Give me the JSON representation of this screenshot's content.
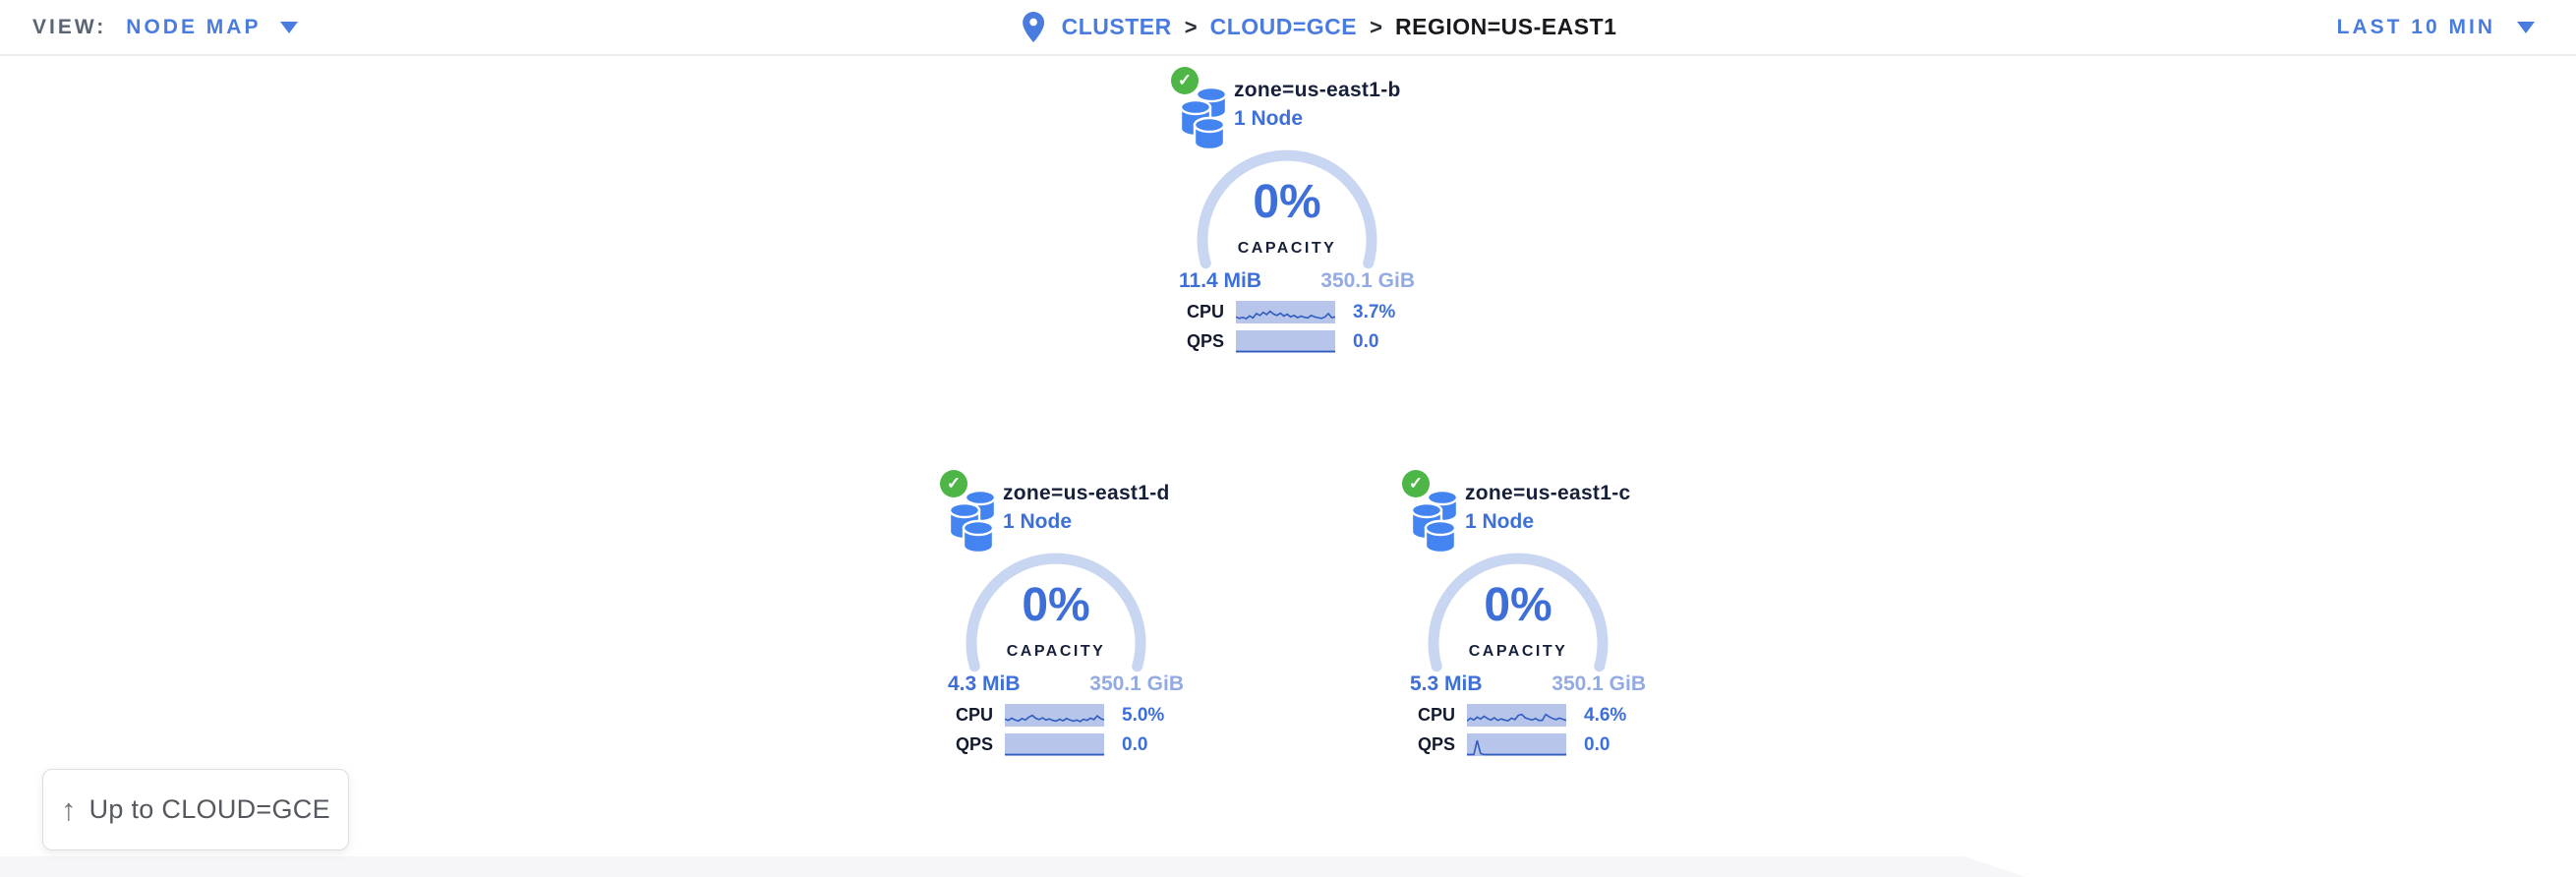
{
  "header": {
    "view_label": "VIEW:",
    "view_value": "NODE MAP",
    "time_range": "LAST 10 MIN",
    "breadcrumb": {
      "separator": ">",
      "items": [
        {
          "label": "CLUSTER"
        },
        {
          "label": "CLOUD=GCE"
        },
        {
          "label": "REGION=US-EAST1"
        }
      ]
    }
  },
  "zones": [
    {
      "name": "zone=us-east1-b",
      "node_count": "1 Node",
      "capacity_percent": "0%",
      "capacity_label": "CAPACITY",
      "used": "11.4 MiB",
      "total": "350.1 GiB",
      "cpu": {
        "label": "CPU",
        "value": "3.7%",
        "spark": [
          30,
          22,
          28,
          20,
          35,
          25,
          48,
          38,
          55,
          42,
          60,
          45,
          38,
          50,
          34,
          44,
          30,
          38,
          26,
          34,
          28,
          24,
          38,
          30,
          26,
          22,
          30,
          48,
          26,
          30
        ]
      },
      "qps": {
        "label": "QPS",
        "value": "0.0",
        "spark": [
          3,
          3,
          3,
          3,
          3,
          3,
          3,
          3,
          3,
          3,
          3,
          3,
          3,
          3,
          3,
          3,
          3,
          3,
          3,
          3,
          3,
          3,
          3,
          3,
          3,
          3,
          3,
          3,
          3,
          3
        ]
      }
    },
    {
      "name": "zone=us-east1-d",
      "node_count": "1 Node",
      "capacity_percent": "0%",
      "capacity_label": "CAPACITY",
      "used": "4.3 MiB",
      "total": "350.1 GiB",
      "cpu": {
        "label": "CPU",
        "value": "5.0%",
        "spark": [
          35,
          28,
          40,
          30,
          25,
          38,
          30,
          45,
          55,
          40,
          32,
          42,
          30,
          36,
          28,
          24,
          34,
          26,
          38,
          30,
          24,
          30,
          22,
          34,
          28,
          40,
          32,
          52,
          38,
          30
        ]
      },
      "qps": {
        "label": "QPS",
        "value": "0.0",
        "spark": [
          3,
          3,
          3,
          3,
          3,
          3,
          3,
          3,
          3,
          3,
          3,
          3,
          3,
          3,
          3,
          3,
          3,
          3,
          3,
          3,
          3,
          3,
          3,
          3,
          3,
          3,
          3,
          3,
          3,
          3
        ]
      }
    },
    {
      "name": "zone=us-east1-c",
      "node_count": "1 Node",
      "capacity_percent": "0%",
      "capacity_label": "CAPACITY",
      "used": "5.3 MiB",
      "total": "350.1 GiB",
      "cpu": {
        "label": "CPU",
        "value": "4.6%",
        "spark": [
          25,
          40,
          30,
          45,
          35,
          50,
          38,
          30,
          42,
          28,
          36,
          30,
          26,
          40,
          32,
          55,
          60,
          42,
          35,
          30,
          38,
          28,
          28,
          60,
          48,
          38,
          32,
          40,
          34,
          28
        ]
      },
      "qps": {
        "label": "QPS",
        "value": "0.0",
        "spark": [
          3,
          3,
          3,
          78,
          8,
          3,
          3,
          3,
          3,
          3,
          3,
          3,
          3,
          3,
          3,
          3,
          3,
          3,
          3,
          3,
          3,
          3,
          3,
          3,
          3,
          3,
          3,
          3,
          3,
          3
        ]
      }
    }
  ],
  "up_button": {
    "icon": "↑",
    "label": "Up to CLOUD=GCE"
  },
  "status_icons": {
    "healthy_check": "✓"
  },
  "colors": {
    "accent": "#3e6fd9",
    "accent_light": "#93abe2",
    "header_link": "#4a7ce0",
    "header_gray": "#5b6472",
    "breadcrumb_current": "#17191d",
    "dark": "#17203a",
    "arc": "#c9d6f2",
    "spark_bg": "#b8c5ea",
    "spark_line": "#2f5cc0",
    "green": "#4eb547",
    "button_text": "#55585e"
  }
}
